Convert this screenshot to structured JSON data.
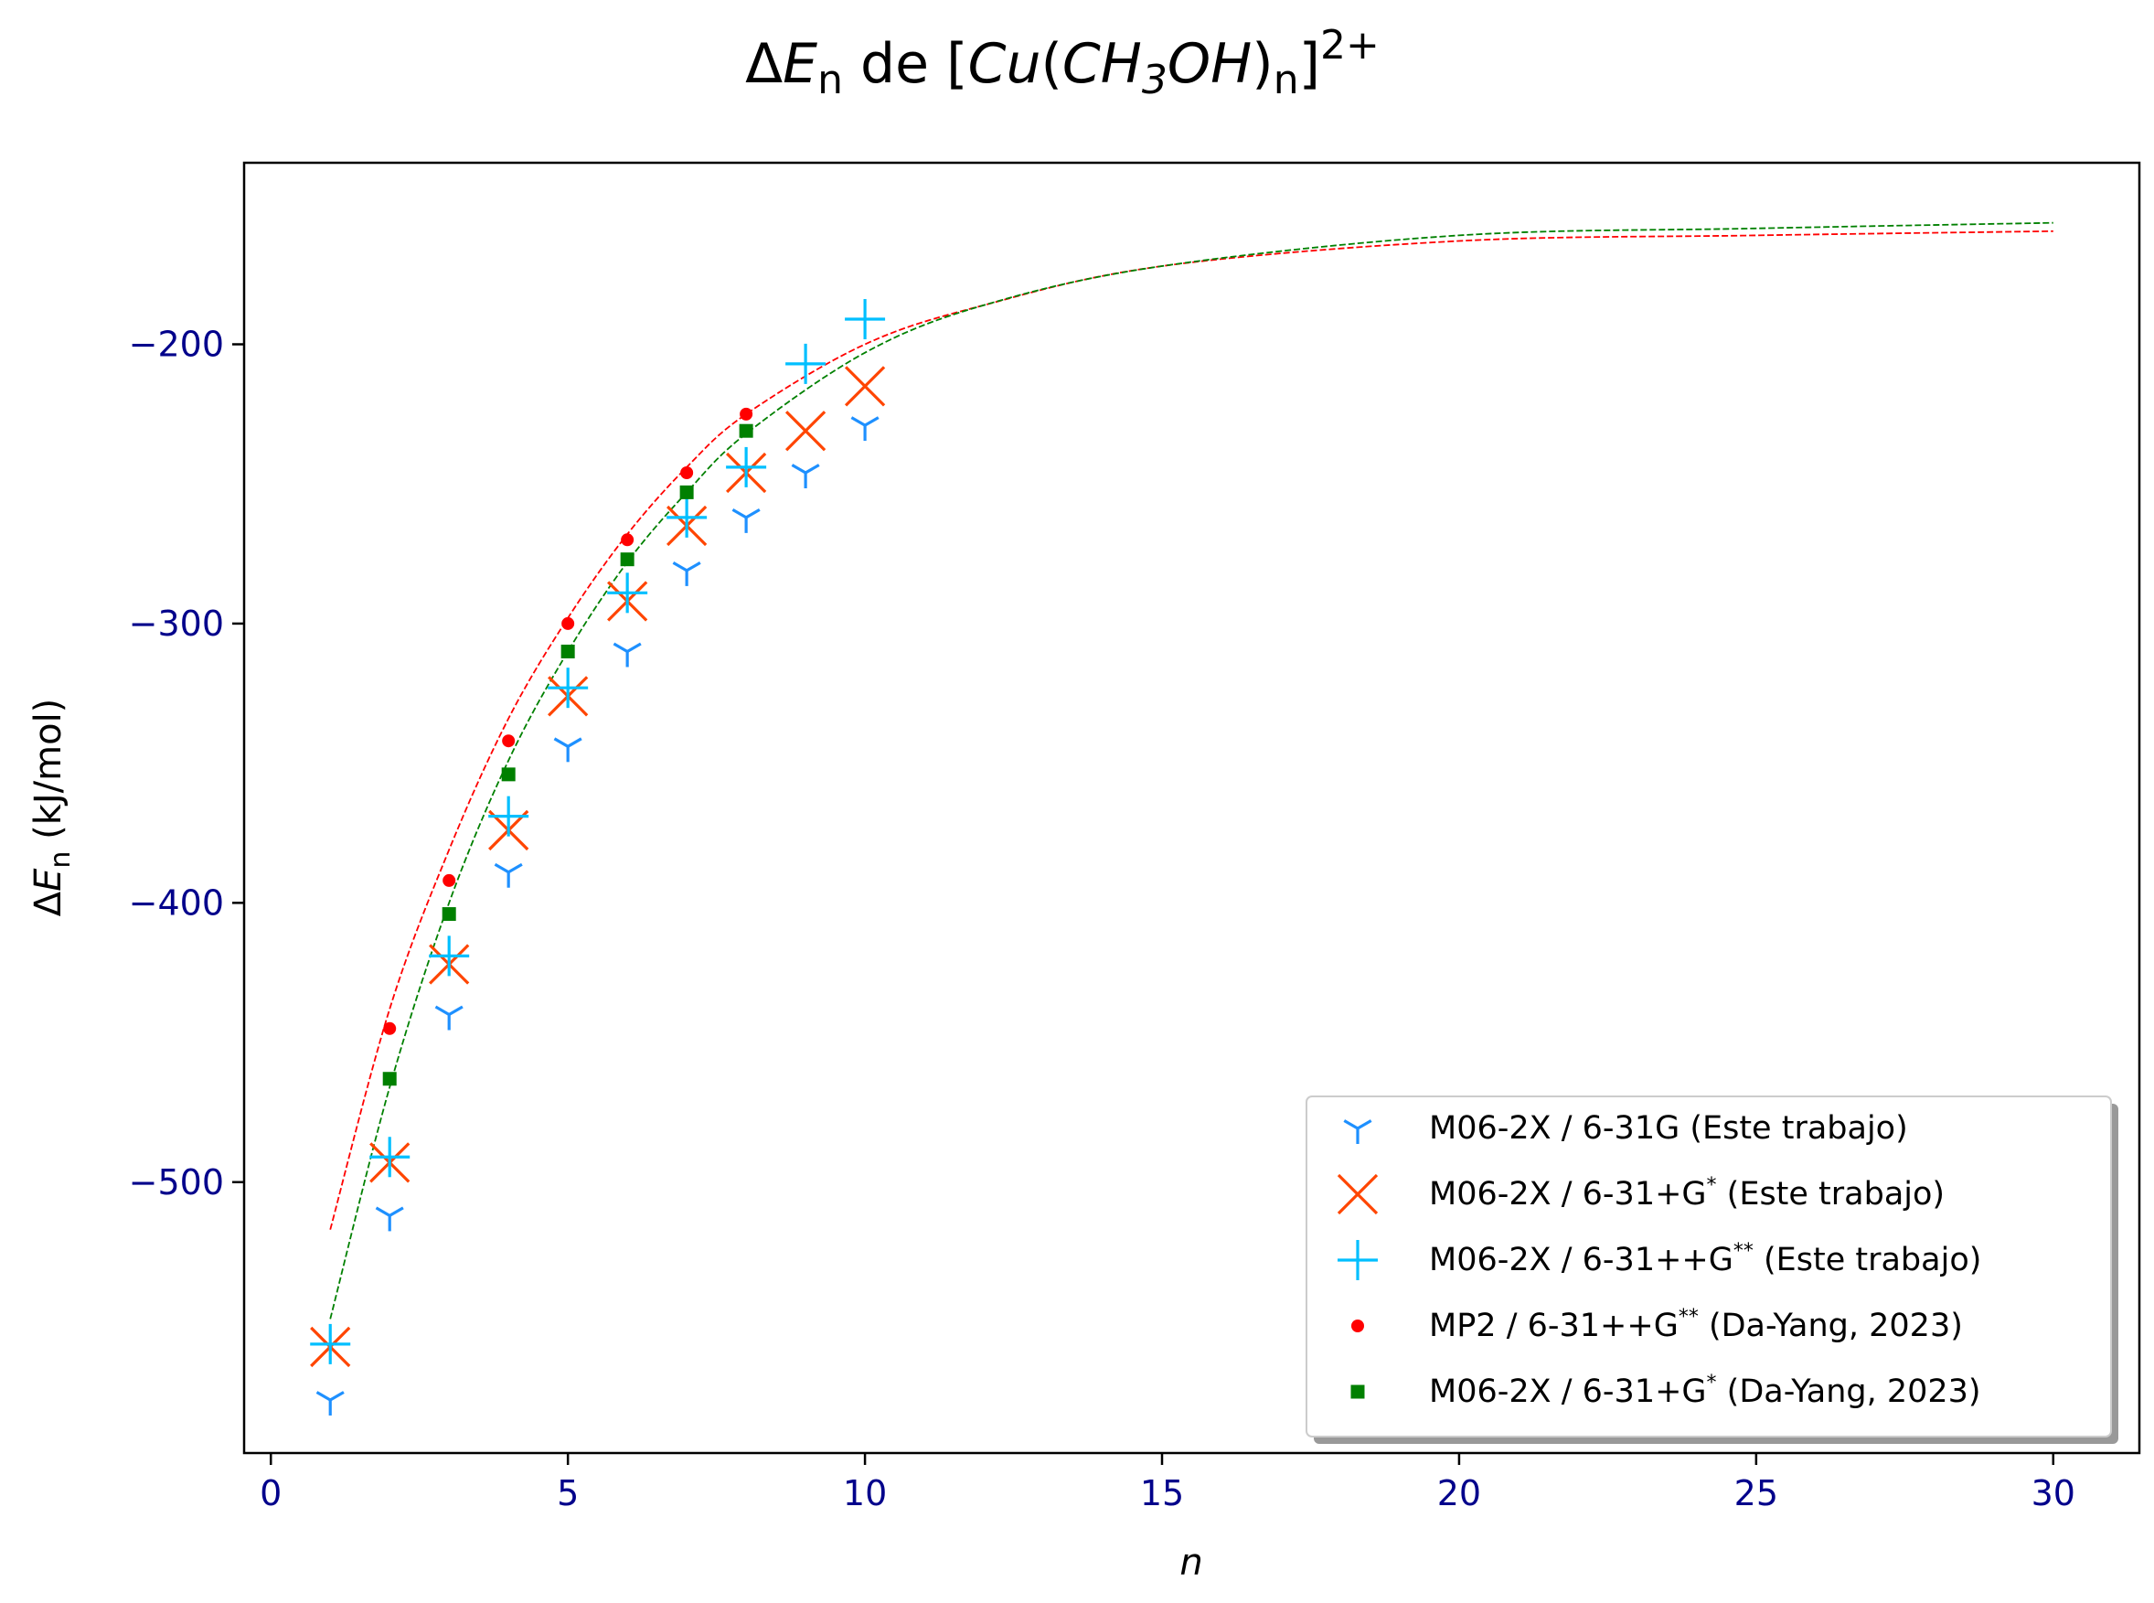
{
  "chart_data": {
    "type": "scatter",
    "title": "ΔE_n de [Cu(CH₃OH)_n]²⁺",
    "title_parts": {
      "delta": "Δ",
      "e": "E",
      "n": "n",
      "de": " de ",
      "lbr": "[",
      "cu": "Cu",
      "lp": "(",
      "ch": "CH",
      "three": "3",
      "oh": "OH",
      "rp": ")",
      "rbr": "]",
      "charge": "2+"
    },
    "xlabel": "n",
    "ylabel": "ΔE_n (kJ/mol)",
    "ylabel_parts": {
      "delta": "Δ",
      "e": "E",
      "n": "n",
      "units": " (kJ/mol)"
    },
    "xlim": [
      -0.45,
      31.45
    ],
    "ylim": [
      -597,
      -135
    ],
    "xticks": [
      0,
      5,
      10,
      15,
      20,
      25,
      30
    ],
    "yticks": [
      -200,
      -300,
      -400,
      -500
    ],
    "tick_label_color": "#00008b",
    "legend_position": "lower right",
    "series": [
      {
        "name": "M06-2X / 6-31G (Este trabajo)",
        "marker": "tri_down",
        "color": "#1e90ff",
        "x": [
          1,
          2,
          3,
          4,
          5,
          6,
          7,
          8,
          9,
          10
        ],
        "y": [
          -578,
          -512,
          -440,
          -389,
          -344,
          -310,
          -281,
          -262,
          -246,
          -229
        ]
      },
      {
        "name": "M06-2X / 6-31+G* (Este trabajo)",
        "marker": "x",
        "color": "#ff4500",
        "x": [
          1,
          2,
          3,
          4,
          5,
          6,
          7,
          8,
          9,
          10
        ],
        "y": [
          -559,
          -493,
          -422,
          -374,
          -326,
          -292,
          -265,
          -246,
          -231,
          -215
        ]
      },
      {
        "name": "M06-2X / 6-31++G** (Este trabajo)",
        "marker": "plus",
        "color": "#00bfff",
        "x": [
          1,
          2,
          3,
          4,
          5,
          6,
          7,
          8,
          9,
          10
        ],
        "y": [
          -558,
          -491,
          -419,
          -369,
          -323,
          -289,
          -262,
          -244,
          -207,
          -191
        ]
      },
      {
        "name": "MP2 / 6-31++G** (Da-Yang, 2023)",
        "marker": "point",
        "color": "#ff0000",
        "x": [
          2,
          3,
          4,
          5,
          6,
          7,
          8
        ],
        "y": [
          -445,
          -392,
          -342,
          -300,
          -270,
          -246,
          -225
        ]
      },
      {
        "name": "M06-2X / 6-31+G* (Da-Yang, 2023)",
        "marker": "square",
        "color": "#008000",
        "x": [
          2,
          3,
          4,
          5,
          6,
          7,
          8
        ],
        "y": [
          -463,
          -404,
          -354,
          -310,
          -277,
          -253,
          -231
        ]
      }
    ],
    "fits": [
      {
        "color": "#ff0000",
        "style": "dashed",
        "x": [
          1,
          2,
          3,
          4,
          5,
          6,
          7,
          8,
          10,
          12,
          15,
          20,
          25,
          30
        ],
        "y": [
          -517,
          -438,
          -381,
          -334,
          -298,
          -268,
          -244,
          -225,
          -200,
          -186,
          -172,
          -163,
          -161,
          -159.5
        ]
      },
      {
        "color": "#008000",
        "style": "dashed",
        "x": [
          1,
          2,
          3,
          4,
          5,
          6,
          7,
          8,
          10,
          12,
          15,
          20,
          25,
          30
        ],
        "y": [
          -549,
          -466,
          -400,
          -349,
          -310,
          -278,
          -253,
          -232,
          -203,
          -186,
          -172,
          -161,
          -158.5,
          -156.5
        ]
      }
    ]
  }
}
